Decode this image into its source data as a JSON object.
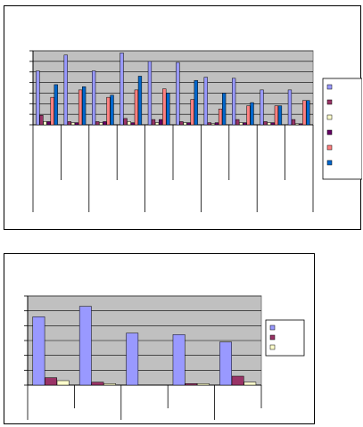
{
  "chart_data": [
    {
      "type": "bar",
      "title": "",
      "xlabel": "",
      "ylabel": "",
      "ylim": [
        0,
        7
      ],
      "grid": true,
      "legend_position": "right",
      "categories": [
        "",
        "",
        "",
        "",
        "",
        "",
        "",
        "",
        "",
        ""
      ],
      "series": [
        {
          "color": "#9999ff",
          "values": [
            5.1,
            6.6,
            5.1,
            6.8,
            6.0,
            5.9,
            4.5,
            4.4,
            3.3,
            3.3
          ]
        },
        {
          "color": "#993366",
          "values": [
            0.9,
            0.3,
            0.3,
            0.6,
            0.5,
            0.3,
            0.2,
            0.5,
            0.3,
            0.5
          ]
        },
        {
          "color": "#ffffcc",
          "values": [
            0.3,
            0.2,
            0.2,
            0.3,
            0.2,
            0.2,
            0.1,
            0.2,
            0.2,
            0.1
          ]
        },
        {
          "color": "#660066",
          "values": [
            0.3,
            0.2,
            0.3,
            0.2,
            0.5,
            0.2,
            0.2,
            0.2,
            0.2,
            0.1
          ]
        },
        {
          "color": "#ff8080",
          "values": [
            2.6,
            3.3,
            2.6,
            3.3,
            3.4,
            2.4,
            1.5,
            1.8,
            1.8,
            2.3
          ]
        },
        {
          "color": "#0066cc",
          "values": [
            3.8,
            3.6,
            2.8,
            4.6,
            3.0,
            4.2,
            3.0,
            2.1,
            1.8,
            2.3
          ]
        }
      ]
    },
    {
      "type": "bar",
      "title": "",
      "xlabel": "",
      "ylabel": "",
      "ylim": [
        0,
        6
      ],
      "grid": true,
      "legend_position": "right",
      "categories": [
        "",
        "",
        "",
        "",
        ""
      ],
      "series": [
        {
          "color": "#9999ff",
          "values": [
            4.6,
            5.3,
            3.5,
            3.4,
            2.9
          ]
        },
        {
          "color": "#993366",
          "values": [
            0.5,
            0.2,
            0.0,
            0.1,
            0.6
          ]
        },
        {
          "color": "#ffffcc",
          "values": [
            0.3,
            0.1,
            0.0,
            0.1,
            0.2
          ]
        }
      ]
    }
  ]
}
